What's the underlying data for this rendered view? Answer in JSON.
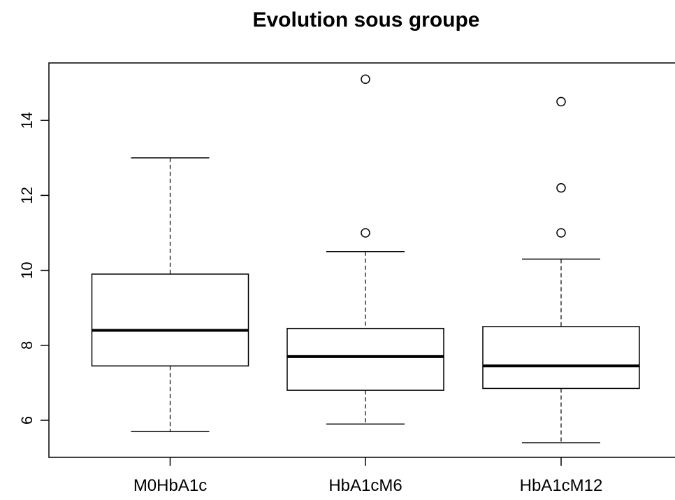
{
  "chart_data": {
    "type": "box",
    "title": "Evolution sous groupe",
    "xlabel": "",
    "ylabel": "",
    "categories": [
      "M0HbA1c",
      "HbA1cM6",
      "HbA1cM12"
    ],
    "boxes": [
      {
        "name": "M0HbA1c",
        "whisker_low": 5.7,
        "q1": 7.45,
        "median": 8.4,
        "q3": 9.9,
        "whisker_high": 13.0,
        "outliers": []
      },
      {
        "name": "HbA1cM6",
        "whisker_low": 5.9,
        "q1": 6.8,
        "median": 7.7,
        "q3": 8.45,
        "whisker_high": 10.5,
        "outliers": [
          11.0,
          15.1
        ]
      },
      {
        "name": "HbA1cM12",
        "whisker_low": 5.4,
        "q1": 6.85,
        "median": 7.45,
        "q3": 8.5,
        "whisker_high": 10.3,
        "outliers": [
          11.0,
          12.2,
          14.5
        ]
      }
    ],
    "yticks": [
      6,
      8,
      10,
      12,
      14
    ],
    "ylim": [
      5.0,
      15.5
    ],
    "grid": false,
    "legend": "none"
  }
}
